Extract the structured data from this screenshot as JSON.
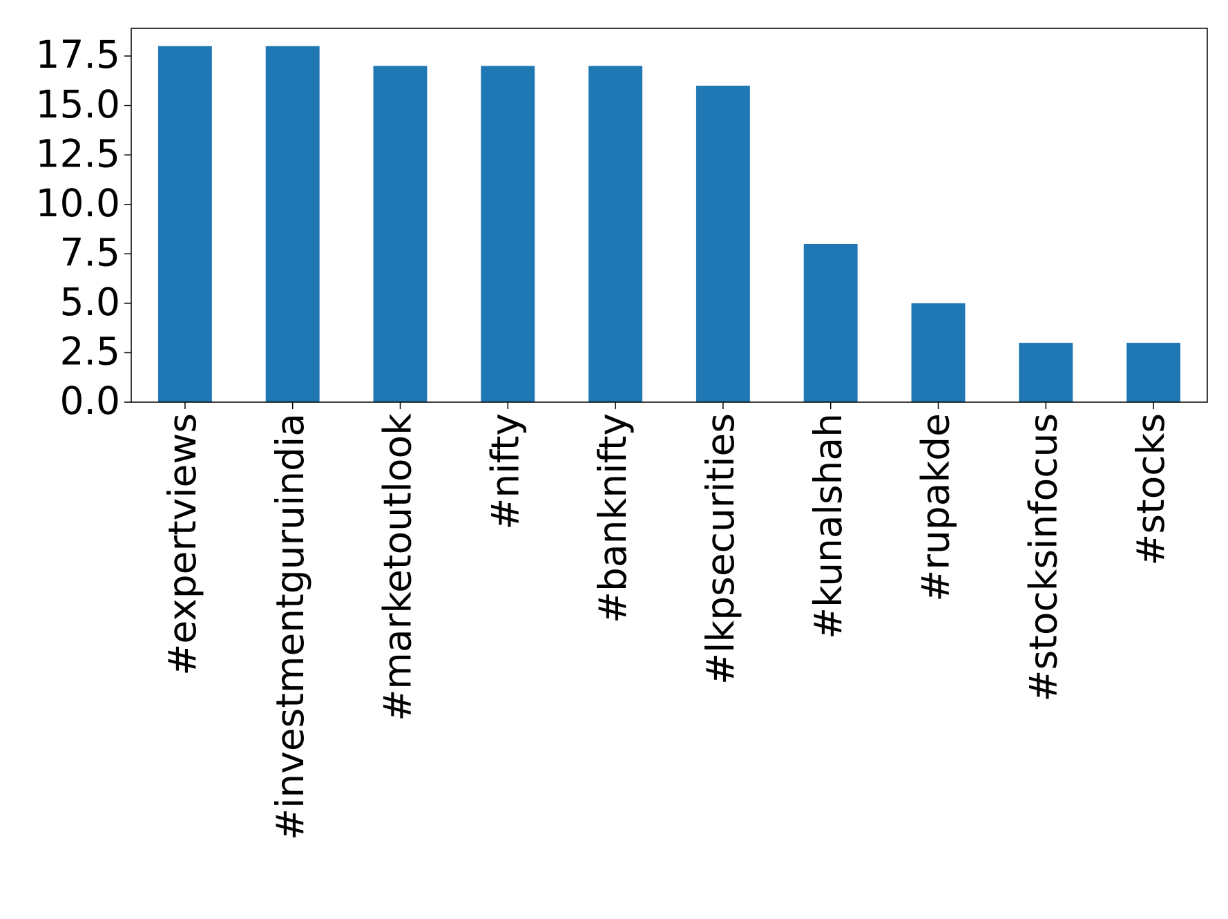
{
  "chart_data": {
    "type": "bar",
    "categories": [
      "#expertviews",
      "#investmentguruindia",
      "#marketoutlook",
      "#nifty",
      "#banknifty",
      "#lkpsecurities",
      "#kunalshah",
      "#rupakde",
      "#stocksinfocus",
      "#stocks"
    ],
    "values": [
      18,
      18,
      17,
      17,
      17,
      16,
      8,
      5,
      3,
      3
    ],
    "color": "#1f77b4",
    "ylim": [
      0,
      18.9
    ],
    "yticks": [
      {
        "value": 0,
        "label": "0.0"
      },
      2.5,
      {
        "value": 5,
        "label": "5.0"
      },
      7.5,
      {
        "value": 10,
        "label": "10.0"
      },
      12.5,
      {
        "value": 15,
        "label": "15.0"
      },
      17.5
    ],
    "grid": false
  }
}
